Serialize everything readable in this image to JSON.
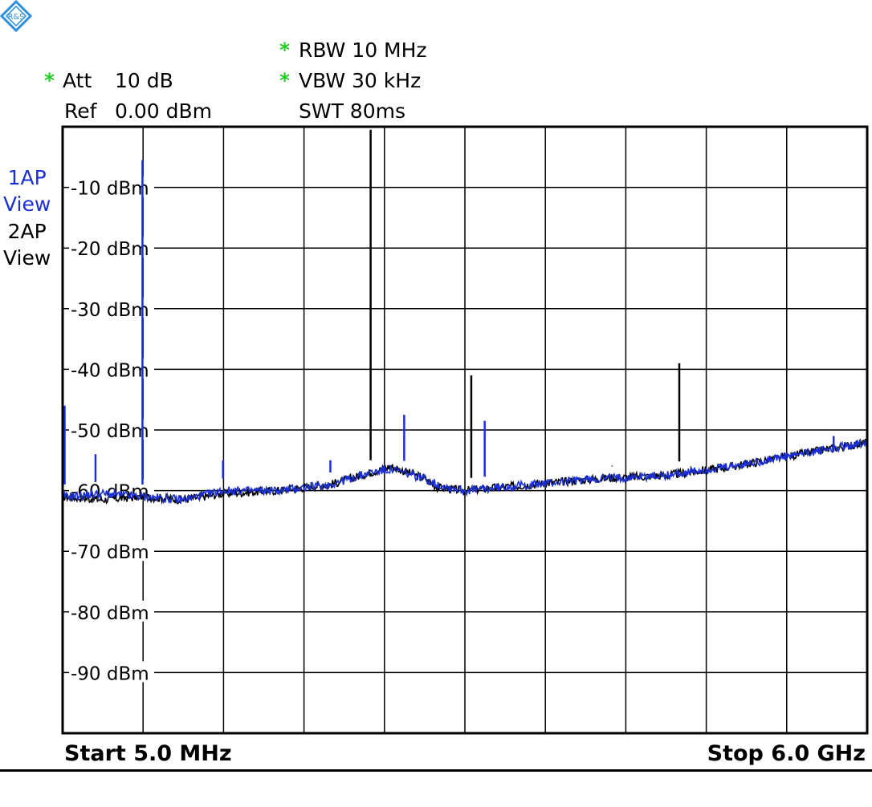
{
  "header": {
    "att_star": "*",
    "att_label": "Att",
    "att_value": "10 dB",
    "ref_label": "Ref",
    "ref_value": "0.00 dBm",
    "rbw_star": "*",
    "rbw": "RBW 10 MHz",
    "vbw_star": "*",
    "vbw": "VBW 30 kHz",
    "swt": "SWT 80ms"
  },
  "traces": [
    {
      "label_line1": "1AP",
      "label_line2": "View",
      "color": "#1a2fd6"
    },
    {
      "label_line1": "2AP",
      "label_line2": "View",
      "color": "#000000"
    }
  ],
  "footer": {
    "start": "Start 5.0 MHz",
    "stop": "Stop 6.0 GHz"
  },
  "logo_icon": "rohde-schwarz-logo-icon",
  "chart_data": {
    "type": "line",
    "ylim": [
      -100,
      0
    ],
    "xlim": [
      0.005,
      6.0
    ],
    "x_unit": "GHz",
    "y_unit": "dBm",
    "grid": true,
    "ytick_labels": [
      "-10 dBm",
      "-20 dBm",
      "-30 dBm",
      "-40 dBm",
      "-50 dBm",
      "-60 dBm",
      "-70 dBm",
      "-80 dBm",
      "-90 dBm"
    ],
    "ytick_values": [
      -10,
      -20,
      -30,
      -40,
      -50,
      -60,
      -70,
      -80,
      -90
    ],
    "xdivisions": 10,
    "series": [
      {
        "color": "#1a2fd6",
        "baseline": [
          [
            0.005,
            -61
          ],
          [
            0.3,
            -60.5
          ],
          [
            0.6,
            -61
          ],
          [
            0.9,
            -61.5
          ],
          [
            1.2,
            -60
          ],
          [
            1.6,
            -60
          ],
          [
            2.0,
            -59
          ],
          [
            2.3,
            -57
          ],
          [
            2.45,
            -56.5
          ],
          [
            2.7,
            -58
          ],
          [
            2.8,
            -59
          ],
          [
            3.0,
            -60
          ],
          [
            3.5,
            -59
          ],
          [
            4.0,
            -58
          ],
          [
            4.5,
            -57.5
          ],
          [
            5.0,
            -56
          ],
          [
            5.5,
            -54
          ],
          [
            6.0,
            -52
          ]
        ],
        "spikes": [
          [
            0.02,
            -46
          ],
          [
            0.25,
            -54
          ],
          [
            0.6,
            -5.5
          ],
          [
            1.2,
            -55
          ],
          [
            2.0,
            -55
          ],
          [
            2.55,
            -47.5
          ],
          [
            3.15,
            -48.5
          ],
          [
            5.75,
            -53.5
          ]
        ]
      },
      {
        "color": "#000000",
        "baseline": [
          [
            0.005,
            -61
          ],
          [
            0.3,
            -61.5
          ],
          [
            0.6,
            -61
          ],
          [
            0.9,
            -61.5
          ],
          [
            1.2,
            -60.5
          ],
          [
            1.6,
            -60
          ],
          [
            2.0,
            -59
          ],
          [
            2.3,
            -57
          ],
          [
            2.45,
            -56
          ],
          [
            2.7,
            -58
          ],
          [
            2.8,
            -59.5
          ],
          [
            3.0,
            -60
          ],
          [
            3.5,
            -59
          ],
          [
            4.0,
            -58
          ],
          [
            4.5,
            -57.5
          ],
          [
            5.0,
            -56
          ],
          [
            5.5,
            -54
          ],
          [
            6.0,
            -52
          ]
        ],
        "spikes": [
          [
            2.3,
            -0.5
          ],
          [
            3.05,
            -41
          ],
          [
            4.1,
            -56
          ],
          [
            4.6,
            -39
          ]
        ]
      }
    ]
  }
}
